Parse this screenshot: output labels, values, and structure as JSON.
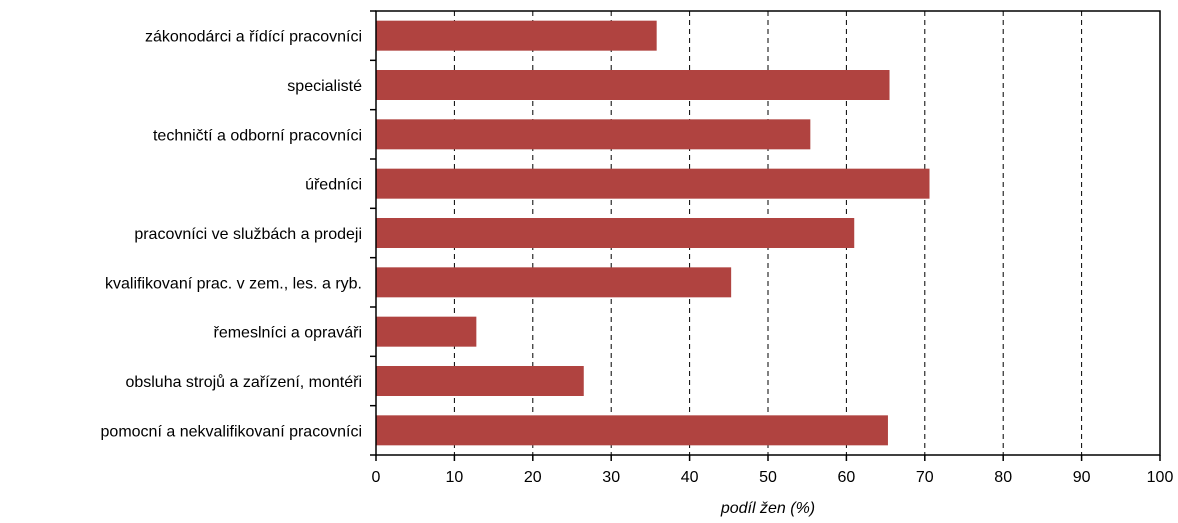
{
  "chart_data": {
    "type": "bar",
    "orientation": "horizontal",
    "categories": [
      "zákonodárci a řídící pracovníci",
      "specialisté",
      "techničtí a odborní pracovníci",
      "úředníci",
      "pracovníci ve službách a prodeji",
      "kvalifikovaní prac. v zem., les. a ryb.",
      "řemeslníci a opraváři",
      "obsluha strojů a zařízení, montéři",
      "pomocní a nekvalifikovaní pracovníci"
    ],
    "values": [
      35.8,
      65.5,
      55.4,
      70.6,
      61.0,
      45.3,
      12.8,
      26.5,
      65.3
    ],
    "xlabel": "podíl žen (%)",
    "xlim": [
      0,
      100
    ],
    "xticks": [
      "0",
      "10",
      "20",
      "30",
      "40",
      "50",
      "60",
      "70",
      "80",
      "90",
      "100"
    ],
    "grid": "vertical dashed",
    "legend": "none",
    "colors": {
      "bar": "#b04340",
      "grid": "#000000",
      "frame": "#000000"
    }
  }
}
